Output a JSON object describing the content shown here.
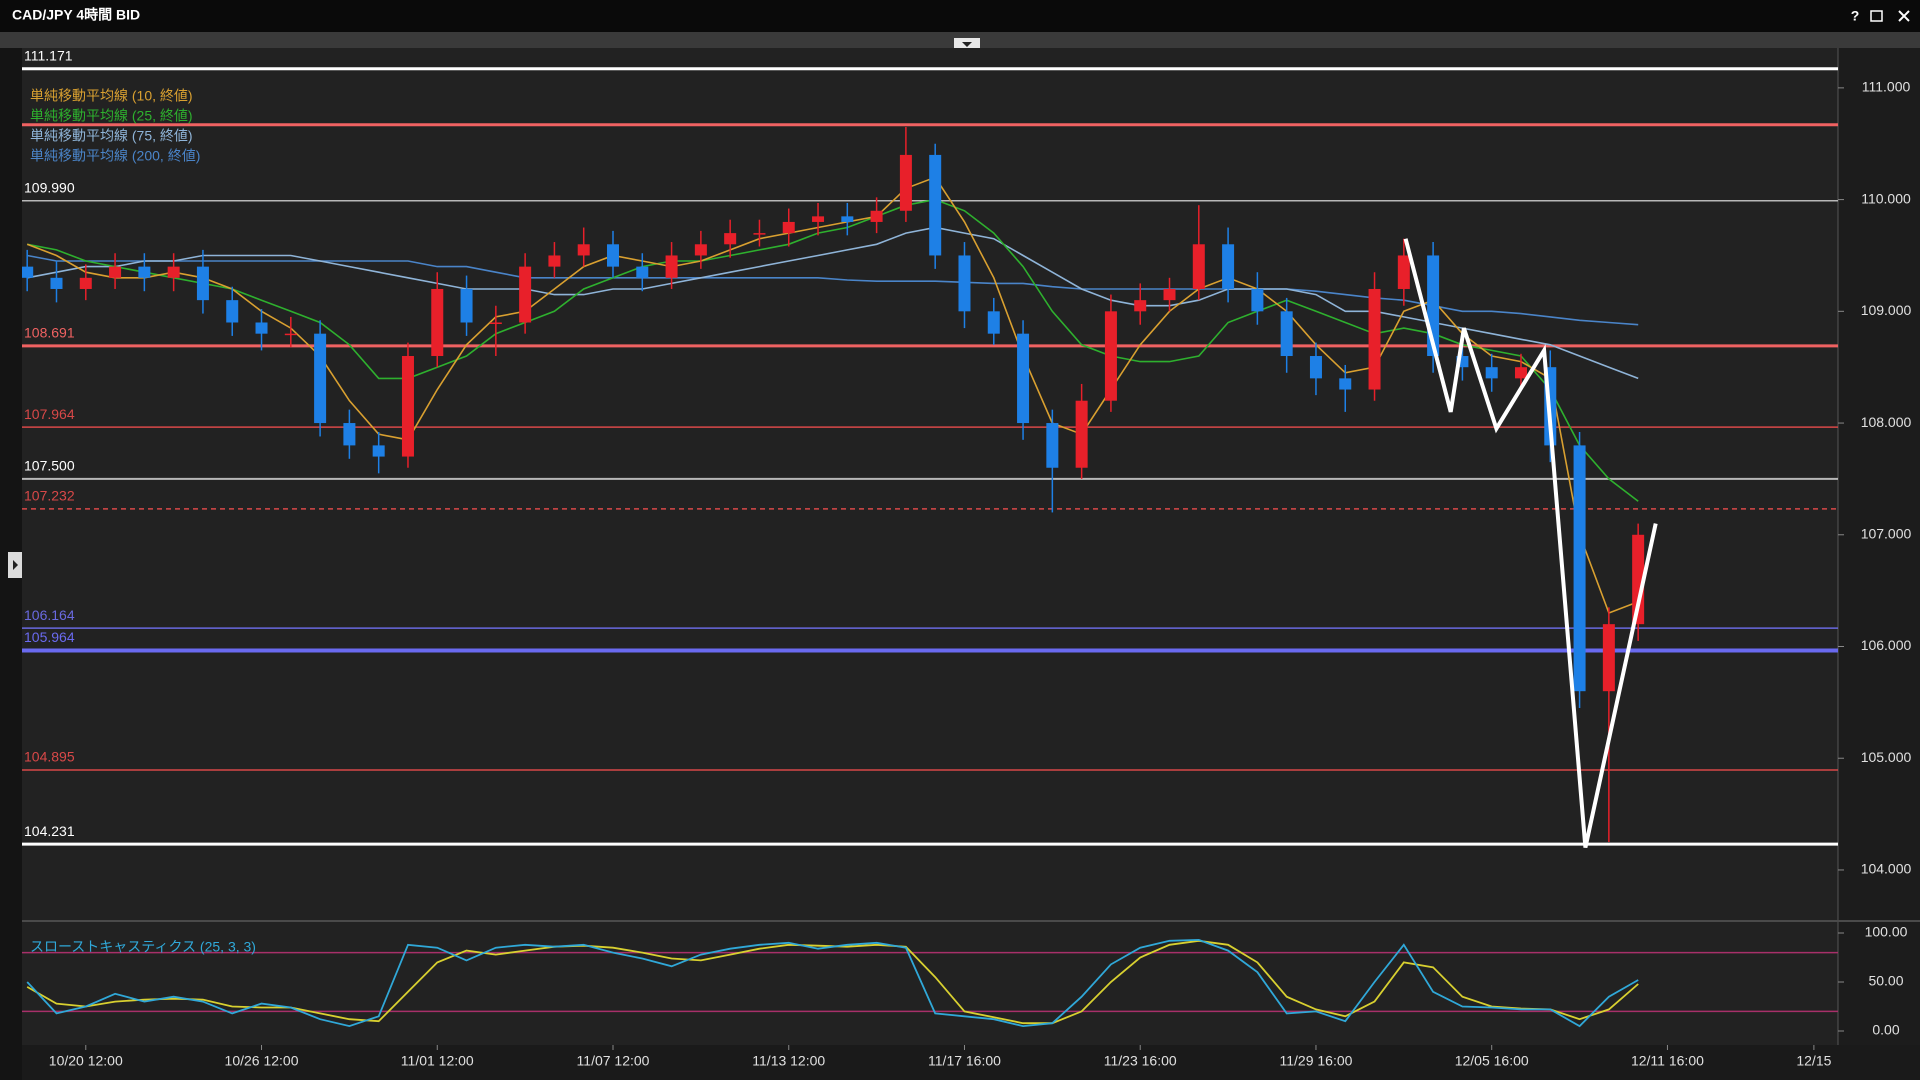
{
  "window": {
    "title": "CAD/JPY 4時間 BID",
    "help": "?"
  },
  "chart_data": [
    {
      "type": "candlestick",
      "categories": [
        null,
        null,
        "10/20 12:00",
        null,
        null,
        null,
        null,
        null,
        "10/26 12:00",
        null,
        null,
        null,
        null,
        null,
        "11/01 12:00",
        null,
        null,
        null,
        null,
        null,
        "11/07 12:00",
        null,
        null,
        null,
        null,
        null,
        "11/13 12:00",
        null,
        null,
        null,
        null,
        null,
        "11/17 16:00",
        null,
        null,
        null,
        null,
        null,
        "11/23 16:00",
        null,
        null,
        null,
        null,
        null,
        "11/29 16:00",
        null,
        null,
        null,
        null,
        null,
        "12/05 16:00",
        null,
        null,
        null,
        null,
        null,
        "12/11 16:00",
        null,
        null,
        null,
        null,
        "12/15"
      ],
      "open": [
        109.4,
        109.3,
        109.2,
        109.3,
        109.4,
        109.3,
        109.4,
        109.1,
        108.9,
        108.8,
        108.8,
        108.0,
        107.8,
        107.7,
        108.6,
        109.2,
        108.9,
        108.9,
        109.4,
        109.5,
        109.6,
        109.4,
        109.3,
        109.5,
        109.6,
        109.7,
        109.7,
        109.8,
        109.85,
        109.8,
        109.9,
        110.4,
        109.5,
        109.0,
        108.8,
        108.0,
        107.6,
        108.2,
        109.0,
        109.1,
        109.2,
        109.6,
        109.2,
        109.0,
        108.6,
        108.4,
        108.3,
        109.2,
        109.5,
        108.6,
        108.5,
        108.4,
        108.5,
        107.8,
        105.6,
        106.2,
        null,
        null,
        null,
        null,
        null,
        null
      ],
      "high": [
        109.55,
        109.45,
        109.42,
        109.52,
        109.52,
        109.52,
        109.55,
        109.22,
        109.02,
        108.95,
        108.92,
        108.12,
        107.92,
        108.72,
        109.35,
        109.32,
        109.05,
        109.52,
        109.62,
        109.75,
        109.72,
        109.52,
        109.62,
        109.72,
        109.82,
        109.82,
        109.92,
        109.97,
        109.97,
        110.02,
        110.65,
        110.5,
        109.62,
        109.12,
        108.92,
        108.12,
        108.35,
        109.15,
        109.25,
        109.3,
        109.95,
        109.75,
        109.35,
        109.12,
        108.72,
        108.52,
        109.35,
        109.65,
        109.62,
        108.75,
        108.62,
        108.62,
        108.65,
        107.92,
        106.35,
        107.1,
        null,
        null,
        null,
        null,
        null,
        null
      ],
      "low": [
        109.18,
        109.08,
        109.1,
        109.2,
        109.18,
        109.18,
        108.98,
        108.78,
        108.65,
        108.68,
        107.88,
        107.68,
        107.55,
        107.6,
        108.5,
        108.78,
        108.6,
        108.8,
        109.3,
        109.4,
        109.3,
        109.18,
        109.2,
        109.38,
        109.48,
        109.58,
        109.58,
        109.68,
        109.68,
        109.7,
        109.8,
        109.38,
        108.85,
        108.7,
        107.85,
        107.2,
        107.5,
        108.1,
        108.88,
        109.0,
        109.1,
        109.08,
        108.88,
        108.45,
        108.25,
        108.1,
        108.2,
        109.05,
        108.45,
        108.38,
        108.28,
        108.3,
        107.65,
        105.45,
        104.25,
        106.05,
        null,
        null,
        null,
        null,
        null,
        null
      ],
      "close": [
        109.3,
        109.2,
        109.3,
        109.4,
        109.3,
        109.4,
        109.1,
        108.9,
        108.8,
        108.8,
        108.0,
        107.8,
        107.7,
        108.6,
        109.2,
        108.9,
        108.9,
        109.4,
        109.5,
        109.6,
        109.4,
        109.3,
        109.5,
        109.6,
        109.7,
        109.7,
        109.8,
        109.85,
        109.8,
        109.9,
        110.4,
        109.5,
        109.0,
        108.8,
        108.0,
        107.6,
        108.2,
        109.0,
        109.1,
        109.2,
        109.6,
        109.2,
        109.0,
        108.6,
        108.4,
        108.3,
        109.2,
        109.5,
        108.6,
        108.5,
        108.4,
        108.5,
        107.8,
        105.6,
        106.2,
        107.0,
        null,
        null,
        null,
        null,
        null,
        null
      ],
      "up_color": "#e8202a",
      "down_color": "#1e80e6",
      "ylim": [
        103.57,
        111.33
      ],
      "yticks": [
        {
          "value": 104,
          "label": "104.000"
        },
        {
          "value": 105,
          "label": "105.000"
        },
        {
          "value": 106,
          "label": "106.000"
        },
        {
          "value": 107,
          "label": "107.000"
        },
        {
          "value": 108,
          "label": "108.000"
        },
        {
          "value": 109,
          "label": "109.000"
        },
        {
          "value": 110,
          "label": "110.000"
        },
        {
          "value": 111,
          "label": "111.000"
        }
      ],
      "levels": [
        {
          "value": 111.171,
          "label": "111.171",
          "color": "#ffffff",
          "width": 3
        },
        {
          "value": 110.67,
          "color": "#f06262",
          "width": 3
        },
        {
          "value": 109.99,
          "label": "109.990",
          "color": "#b8b8b8",
          "width": 1.5
        },
        {
          "value": 108.691,
          "label": "108.691",
          "color": "#f06262",
          "width": 3
        },
        {
          "value": 107.964,
          "label": "107.964",
          "color": "#d84848",
          "width": 1.5
        },
        {
          "value": 107.5,
          "label": "107.500",
          "color": "#b8b8b8",
          "width": 2
        },
        {
          "value": 107.232,
          "label": "107.232",
          "color": "#d84848",
          "width": 1.5,
          "dashed": true
        },
        {
          "value": 106.164,
          "label": "106.164",
          "color": "#6a6ae0",
          "width": 1.5
        },
        {
          "value": 105.964,
          "label": "105.964",
          "color": "#6a6af0",
          "width": 4
        },
        {
          "value": 104.895,
          "label": "104.895",
          "color": "#d84848",
          "width": 1.5
        },
        {
          "value": 104.231,
          "label": "104.231",
          "color": "#ffffff",
          "width": 3
        }
      ],
      "series": [
        {
          "name": "単純移動平均線 (10, 終値)",
          "color": "#d9a030",
          "values": [
            109.6,
            109.5,
            109.35,
            109.3,
            109.3,
            109.35,
            109.3,
            109.2,
            109.0,
            108.85,
            108.6,
            108.2,
            107.9,
            107.85,
            108.3,
            108.7,
            108.95,
            109.0,
            109.2,
            109.4,
            109.5,
            109.45,
            109.4,
            109.45,
            109.55,
            109.65,
            109.7,
            109.75,
            109.8,
            109.85,
            110.1,
            110.2,
            109.8,
            109.3,
            108.6,
            108.0,
            107.9,
            108.3,
            108.7,
            109.0,
            109.2,
            109.3,
            109.2,
            109.0,
            108.7,
            108.45,
            108.5,
            109.0,
            109.1,
            108.8,
            108.6,
            108.55,
            108.4,
            107.0,
            106.3,
            106.4,
            null,
            null,
            null,
            null,
            null,
            null
          ]
        },
        {
          "name": "単純移動平均線 (25, 終値)",
          "color": "#2eb02e",
          "values": [
            109.6,
            109.55,
            109.45,
            109.4,
            109.35,
            109.3,
            109.25,
            109.2,
            109.1,
            109.0,
            108.9,
            108.7,
            108.4,
            108.4,
            108.5,
            108.6,
            108.8,
            108.9,
            109.0,
            109.2,
            109.3,
            109.4,
            109.45,
            109.45,
            109.5,
            109.55,
            109.6,
            109.7,
            109.75,
            109.85,
            109.95,
            110.0,
            109.9,
            109.7,
            109.4,
            109.0,
            108.7,
            108.6,
            108.55,
            108.55,
            108.6,
            108.9,
            109.0,
            109.1,
            109.0,
            108.9,
            108.8,
            108.85,
            108.8,
            108.7,
            108.65,
            108.6,
            108.3,
            107.8,
            107.5,
            107.3,
            null,
            null,
            null,
            null,
            null,
            null
          ]
        },
        {
          "name": "単純移動平均線 (75, 終値)",
          "color": "#8fb4d8",
          "values": [
            109.3,
            109.35,
            109.4,
            109.4,
            109.45,
            109.45,
            109.5,
            109.5,
            109.5,
            109.5,
            109.45,
            109.4,
            109.35,
            109.3,
            109.25,
            109.2,
            109.2,
            109.2,
            109.15,
            109.15,
            109.2,
            109.2,
            109.25,
            109.3,
            109.35,
            109.4,
            109.45,
            109.5,
            109.55,
            109.6,
            109.7,
            109.75,
            109.7,
            109.65,
            109.5,
            109.35,
            109.2,
            109.1,
            109.05,
            109.05,
            109.1,
            109.2,
            109.2,
            109.2,
            109.15,
            109.0,
            109.0,
            108.95,
            108.9,
            108.85,
            108.8,
            108.75,
            108.7,
            108.6,
            108.5,
            108.4,
            null,
            null,
            null,
            null,
            null,
            null
          ]
        },
        {
          "name": "単純移動平均線 (200, 終値)",
          "color": "#4a84c8",
          "values": [
            109.5,
            109.45,
            109.45,
            109.45,
            109.45,
            109.45,
            109.45,
            109.45,
            109.45,
            109.45,
            109.45,
            109.45,
            109.45,
            109.45,
            109.4,
            109.4,
            109.35,
            109.3,
            109.3,
            109.3,
            109.3,
            109.3,
            109.3,
            109.3,
            109.3,
            109.3,
            109.3,
            109.3,
            109.28,
            109.27,
            109.27,
            109.27,
            109.26,
            109.25,
            109.25,
            109.22,
            109.2,
            109.2,
            109.2,
            109.2,
            109.2,
            109.2,
            109.2,
            109.2,
            109.18,
            109.15,
            109.12,
            109.1,
            109.05,
            109.0,
            109.0,
            108.98,
            108.95,
            108.92,
            108.9,
            108.88,
            null,
            null,
            null,
            null,
            null,
            null
          ]
        }
      ],
      "zigzag": {
        "color": "#ffffff",
        "x": [
          47.06,
          48.6,
          49.05,
          50.16,
          51.79,
          53.2,
          55.6
        ],
        "y": [
          109.65,
          108.1,
          108.85,
          107.95,
          108.65,
          104.2,
          107.1
        ]
      }
    },
    {
      "type": "line",
      "title": "スローストキャスティクス (25, 3, 3)",
      "title_color": "#30a8d8",
      "ylim": [
        0,
        100
      ],
      "yticks": [
        {
          "value": 0,
          "label": "0.00"
        },
        {
          "value": 50,
          "label": "50.00"
        },
        {
          "value": 100,
          "label": "100.00"
        }
      ],
      "levels": [
        20,
        80
      ],
      "level_color": "#a8306a",
      "series": [
        {
          "color": "#30a8d8",
          "values": [
            50,
            18,
            25,
            38,
            30,
            35,
            30,
            18,
            28,
            24,
            12,
            5,
            15,
            88,
            85,
            72,
            85,
            88,
            86,
            88,
            80,
            74,
            66,
            78,
            84,
            88,
            90,
            84,
            88,
            90,
            85,
            18,
            15,
            12,
            5,
            8,
            35,
            68,
            85,
            92,
            93,
            82,
            60,
            18,
            20,
            10,
            50,
            88,
            40,
            25,
            24,
            22,
            22,
            5,
            35,
            52,
            null,
            null,
            null,
            null,
            null,
            null
          ]
        },
        {
          "color": "#d8d030",
          "values": [
            45,
            28,
            25,
            30,
            32,
            33,
            32,
            25,
            24,
            24,
            18,
            12,
            10,
            40,
            70,
            82,
            78,
            82,
            86,
            87,
            85,
            80,
            74,
            72,
            78,
            84,
            88,
            87,
            86,
            88,
            86,
            55,
            20,
            14,
            8,
            8,
            20,
            50,
            75,
            88,
            92,
            88,
            70,
            35,
            22,
            15,
            30,
            70,
            65,
            35,
            25,
            23,
            22,
            12,
            22,
            48,
            null,
            null,
            null,
            null,
            null,
            null
          ]
        }
      ]
    }
  ]
}
